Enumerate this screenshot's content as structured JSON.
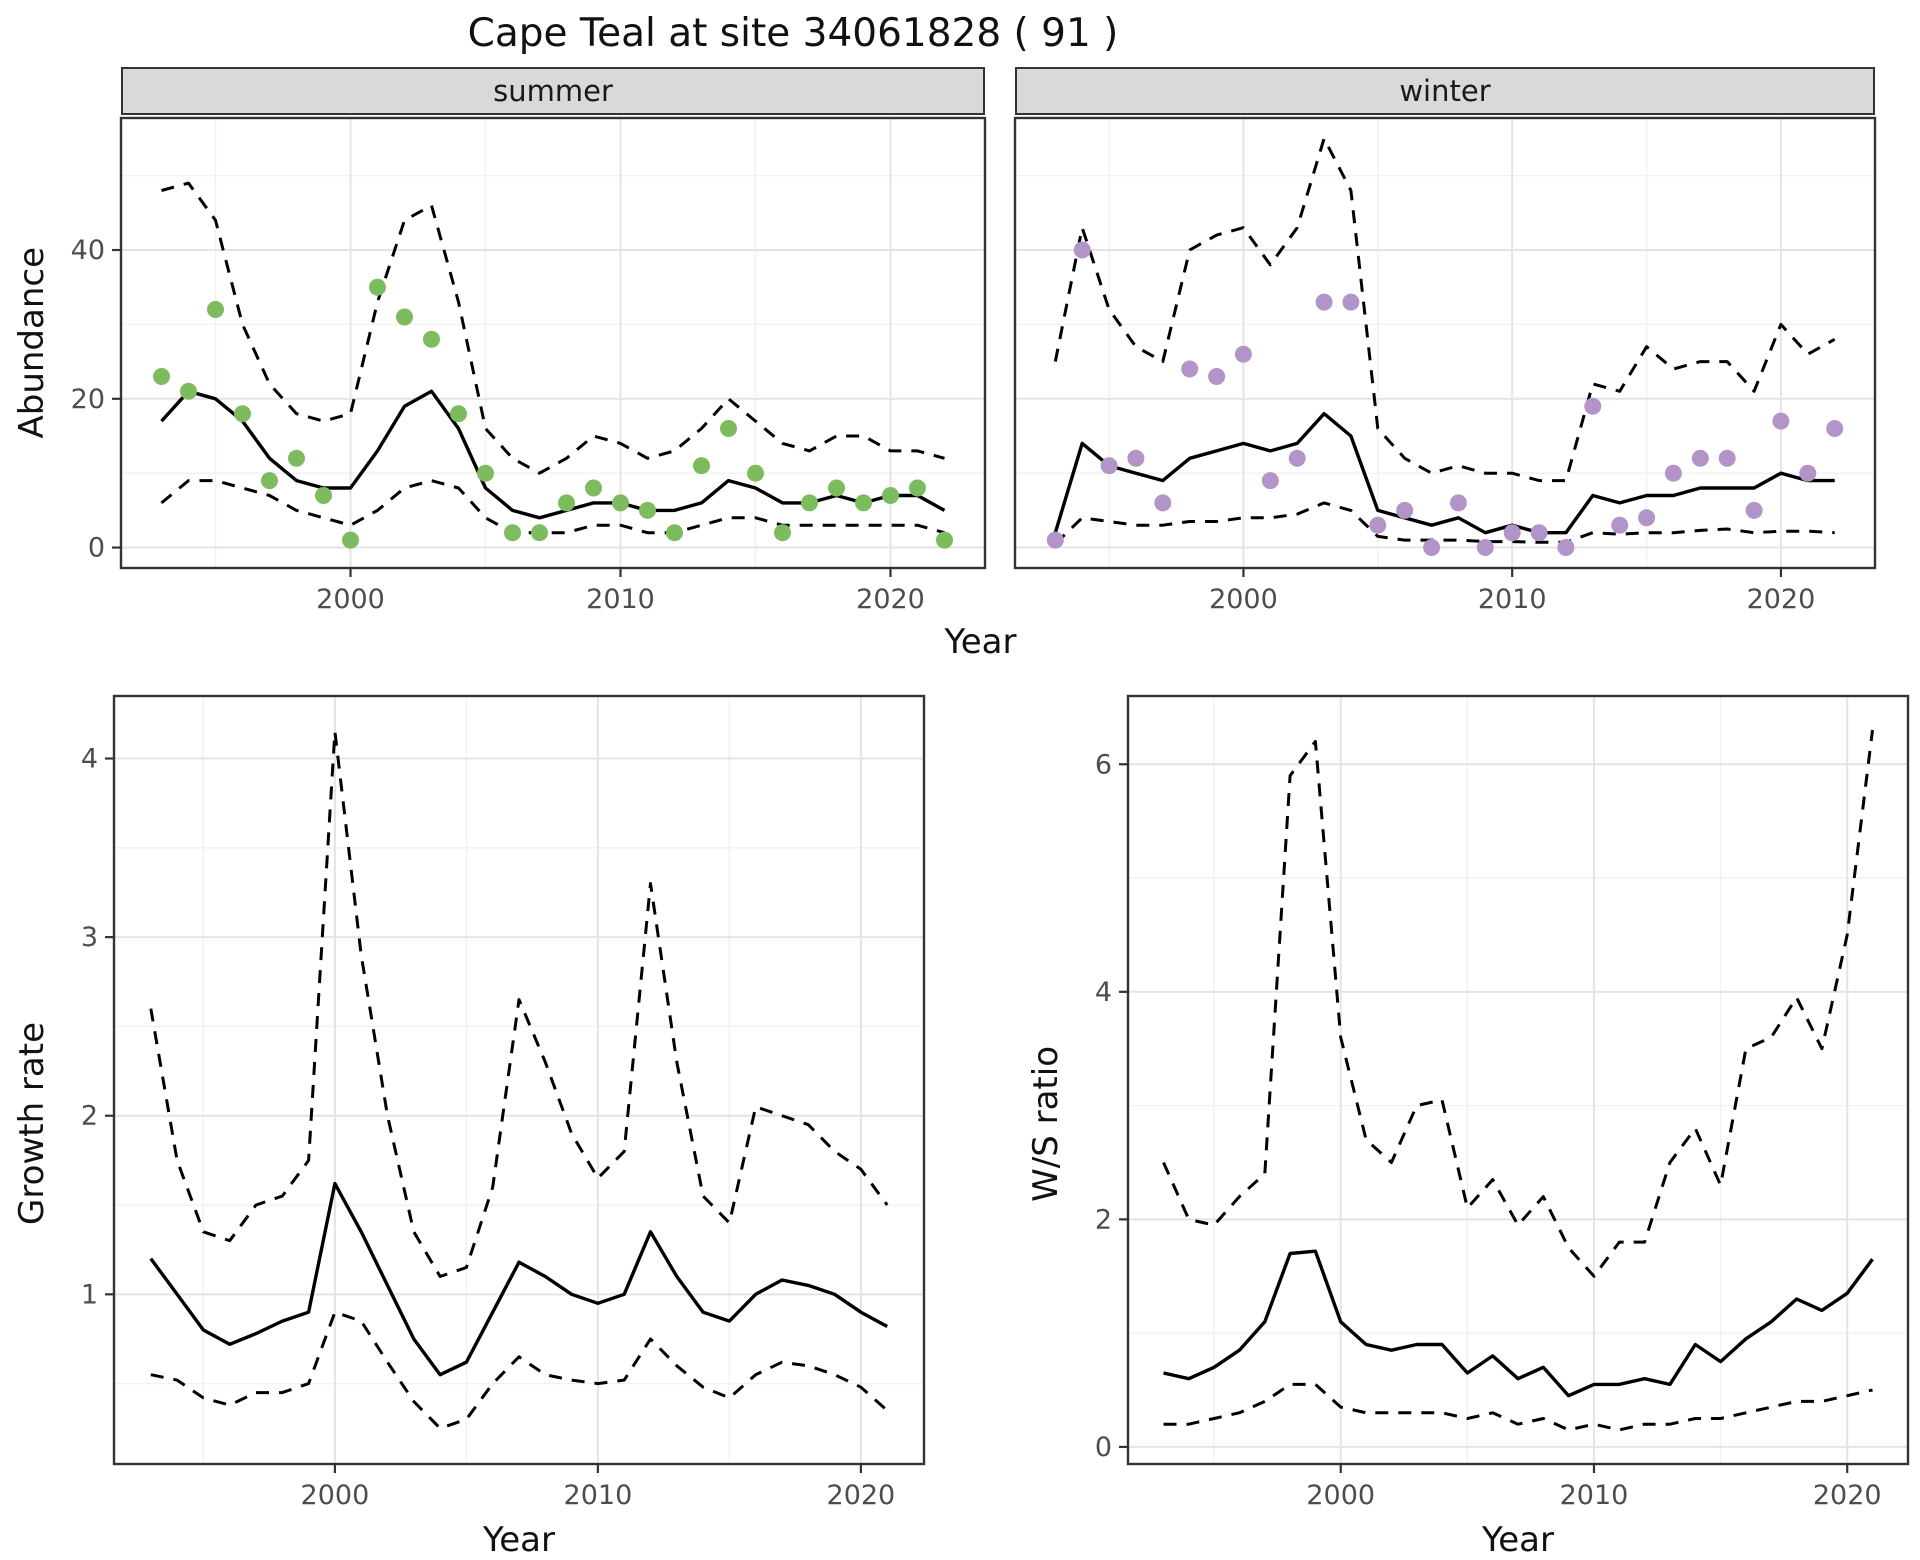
{
  "title": "Cape Teal at site 34061828 ( 91 )",
  "colors": {
    "summer_point": "#7cbc5e",
    "winter_point": "#b394c8",
    "line": "#000000",
    "strip_bg": "#d9d9d9",
    "grid_major": "#e4e4e4",
    "grid_minor": "#f1f1f1",
    "panel_border": "#333333",
    "tick_label": "#4d4d4d"
  },
  "chart_data": [
    {
      "id": "abundance-summer",
      "type": "line",
      "facet": "summer",
      "xlabel": "Year",
      "ylabel": "Abundance",
      "legend": "none; solid line = model fit, dashed lines = confidence band, dots = observed counts",
      "x": [
        1993,
        1994,
        1995,
        1996,
        1997,
        1998,
        1999,
        2000,
        2001,
        2002,
        2003,
        2004,
        2005,
        2006,
        2007,
        2008,
        2009,
        2010,
        2011,
        2012,
        2013,
        2014,
        2015,
        2016,
        2017,
        2018,
        2019,
        2020,
        2021,
        2022
      ],
      "points": [
        23,
        21,
        32,
        18,
        9,
        12,
        7,
        1,
        35,
        31,
        28,
        18,
        10,
        2,
        2,
        6,
        8,
        6,
        5,
        2,
        11,
        16,
        10,
        2,
        6,
        8,
        6,
        7,
        8,
        1
      ],
      "fit": [
        17,
        21,
        20,
        17,
        12,
        9,
        8,
        8,
        13,
        19,
        21,
        16,
        8,
        5,
        4,
        5,
        6,
        6,
        5,
        5,
        6,
        9,
        8,
        6,
        6,
        7,
        6,
        7,
        7,
        5
      ],
      "upper": [
        48,
        49,
        44,
        30,
        22,
        18,
        17,
        18,
        33,
        44,
        46,
        33,
        16,
        12,
        10,
        12,
        15,
        14,
        12,
        13,
        16,
        20,
        17,
        14,
        13,
        15,
        15,
        13,
        13,
        12
      ],
      "lower": [
        6,
        9,
        9,
        8,
        7,
        5,
        4,
        3,
        5,
        8,
        9,
        8,
        4,
        2,
        2,
        2,
        3,
        3,
        2,
        2,
        3,
        4,
        4,
        3,
        3,
        3,
        3,
        3,
        3,
        2
      ],
      "xlim": [
        1991.5,
        2023.5
      ],
      "ylim": [
        -2.75,
        57.75
      ],
      "xticks": [
        2000,
        2010,
        2020
      ],
      "yticks": [
        0,
        20,
        40
      ],
      "point_color": "#7cbc5e",
      "show_y": true,
      "grid": true
    },
    {
      "id": "abundance-winter",
      "type": "line",
      "facet": "winter",
      "xlabel": "Year",
      "ylabel": "Abundance",
      "legend": "none; solid line = model fit, dashed lines = confidence band, dots = observed counts",
      "x": [
        1993,
        1994,
        1995,
        1996,
        1997,
        1998,
        1999,
        2000,
        2001,
        2002,
        2003,
        2004,
        2005,
        2006,
        2007,
        2008,
        2009,
        2010,
        2011,
        2012,
        2013,
        2014,
        2015,
        2016,
        2017,
        2018,
        2019,
        2020,
        2021,
        2022
      ],
      "points": [
        1,
        40,
        11,
        12,
        6,
        24,
        23,
        26,
        9,
        12,
        33,
        33,
        3,
        5,
        0,
        6,
        0,
        2,
        2,
        0,
        19,
        3,
        4,
        10,
        12,
        12,
        5,
        17,
        10,
        16
      ],
      "fit": [
        2,
        14,
        11,
        10,
        9,
        12,
        13,
        14,
        13,
        14,
        18,
        15,
        5,
        4,
        3,
        4,
        2,
        3,
        2,
        2,
        7,
        6,
        7,
        7,
        8,
        8,
        8,
        10,
        9,
        9
      ],
      "upper": [
        25,
        43,
        32,
        27,
        25,
        40,
        42,
        43,
        38,
        43,
        55,
        48,
        16,
        12,
        10,
        11,
        10,
        10,
        9,
        9,
        22,
        21,
        27,
        24,
        25,
        25,
        21,
        30,
        26,
        28
      ],
      "lower": [
        0.5,
        4,
        3.5,
        3,
        3,
        3.5,
        3.5,
        4,
        4,
        4.5,
        6,
        5,
        1.5,
        1,
        1,
        1,
        0.8,
        0.8,
        0.7,
        0.7,
        2,
        1.8,
        2,
        2,
        2.3,
        2.5,
        2,
        2.2,
        2.2,
        2
      ],
      "xlim": [
        1991.5,
        2023.5
      ],
      "ylim": [
        -2.75,
        57.75
      ],
      "xticks": [
        2000,
        2010,
        2020
      ],
      "yticks": [
        0,
        20,
        40
      ],
      "point_color": "#b394c8",
      "show_y": false,
      "grid": true
    },
    {
      "id": "growth-rate",
      "type": "line",
      "xlabel": "Year",
      "ylabel": "Growth rate",
      "legend": "none; solid line = estimate, dashed lines = confidence band",
      "x": [
        1993,
        1994,
        1995,
        1996,
        1997,
        1998,
        1999,
        2000,
        2001,
        2002,
        2003,
        2004,
        2005,
        2006,
        2007,
        2008,
        2009,
        2010,
        2011,
        2012,
        2013,
        2014,
        2015,
        2016,
        2017,
        2018,
        2019,
        2020,
        2021
      ],
      "fit": [
        1.2,
        1.0,
        0.8,
        0.72,
        0.78,
        0.85,
        0.9,
        1.62,
        1.35,
        1.05,
        0.75,
        0.55,
        0.62,
        0.9,
        1.18,
        1.1,
        1.0,
        0.95,
        1.0,
        1.35,
        1.1,
        0.9,
        0.85,
        1.0,
        1.08,
        1.05,
        1.0,
        0.9,
        0.82
      ],
      "upper": [
        2.6,
        1.75,
        1.35,
        1.3,
        1.5,
        1.55,
        1.75,
        4.15,
        2.9,
        2.0,
        1.35,
        1.1,
        1.15,
        1.6,
        2.65,
        2.3,
        1.9,
        1.65,
        1.8,
        3.3,
        2.3,
        1.55,
        1.4,
        2.05,
        2.0,
        1.95,
        1.8,
        1.7,
        1.5
      ],
      "lower": [
        0.55,
        0.52,
        0.42,
        0.38,
        0.45,
        0.45,
        0.5,
        0.9,
        0.85,
        0.62,
        0.4,
        0.25,
        0.3,
        0.5,
        0.65,
        0.55,
        0.52,
        0.5,
        0.52,
        0.75,
        0.6,
        0.48,
        0.42,
        0.55,
        0.62,
        0.6,
        0.55,
        0.48,
        0.35
      ],
      "xlim": [
        1991.6,
        2022.4
      ],
      "ylim": [
        0.05,
        4.35
      ],
      "xticks": [
        2000,
        2010,
        2020
      ],
      "yticks": [
        1,
        2,
        3,
        4
      ],
      "show_y": true,
      "grid": true
    },
    {
      "id": "ws-ratio",
      "type": "line",
      "xlabel": "Year",
      "ylabel": "W/S ratio",
      "legend": "none; solid line = estimate, dashed lines = confidence band",
      "x": [
        1993,
        1994,
        1995,
        1996,
        1997,
        1998,
        1999,
        2000,
        2001,
        2002,
        2003,
        2004,
        2005,
        2006,
        2007,
        2008,
        2009,
        2010,
        2011,
        2012,
        2013,
        2014,
        2015,
        2016,
        2017,
        2018,
        2019,
        2020,
        2021
      ],
      "fit": [
        0.65,
        0.6,
        0.7,
        0.85,
        1.1,
        1.7,
        1.72,
        1.1,
        0.9,
        0.85,
        0.9,
        0.9,
        0.65,
        0.8,
        0.6,
        0.7,
        0.45,
        0.55,
        0.55,
        0.6,
        0.55,
        0.9,
        0.75,
        0.95,
        1.1,
        1.3,
        1.2,
        1.35,
        1.65
      ],
      "upper": [
        2.5,
        2.0,
        1.95,
        2.2,
        2.4,
        5.9,
        6.2,
        3.6,
        2.7,
        2.5,
        3.0,
        3.05,
        2.1,
        2.35,
        1.95,
        2.2,
        1.75,
        1.5,
        1.8,
        1.8,
        2.5,
        2.8,
        2.3,
        3.5,
        3.6,
        3.95,
        3.5,
        4.5,
        6.3
      ],
      "lower": [
        0.2,
        0.2,
        0.25,
        0.3,
        0.4,
        0.55,
        0.55,
        0.35,
        0.3,
        0.3,
        0.3,
        0.3,
        0.25,
        0.3,
        0.2,
        0.25,
        0.15,
        0.2,
        0.15,
        0.2,
        0.2,
        0.25,
        0.25,
        0.3,
        0.35,
        0.4,
        0.4,
        0.45,
        0.5
      ],
      "xlim": [
        1991.6,
        2022.4
      ],
      "ylim": [
        -0.15,
        6.6
      ],
      "xticks": [
        2000,
        2010,
        2020
      ],
      "yticks": [
        0,
        2,
        4,
        6
      ],
      "show_y": true,
      "grid": true
    }
  ]
}
